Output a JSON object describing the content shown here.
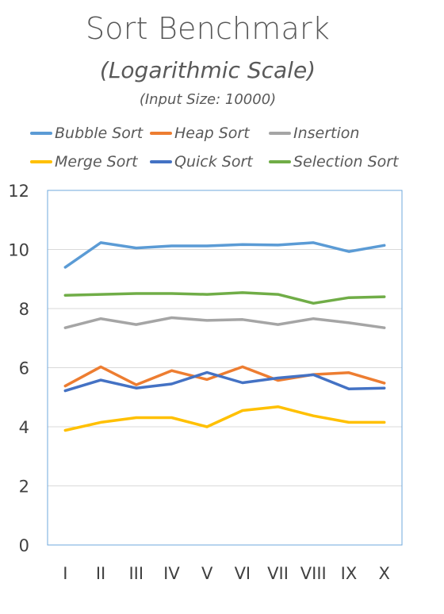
{
  "chart_data": {
    "type": "line",
    "title": "Sort Benchmark",
    "subtitle": "(Logarithmic Scale)",
    "subsubtitle": "(Input Size: 10000)",
    "xlabel": "",
    "ylabel": "",
    "categories": [
      "I",
      "II",
      "III",
      "IV",
      "V",
      "VI",
      "VII",
      "VIII",
      "IX",
      "X"
    ],
    "ylim": [
      0,
      12
    ],
    "yticks": [
      0,
      2,
      4,
      6,
      8,
      10,
      12
    ],
    "legend_position": "top",
    "grid": "horizontal",
    "series": [
      {
        "name": "Bubble Sort",
        "color": "#5B9BD5",
        "values": [
          9.4,
          10.23,
          10.05,
          10.12,
          10.12,
          10.17,
          10.15,
          10.23,
          9.93,
          10.14
        ]
      },
      {
        "name": "Heap Sort",
        "color": "#ED7D31",
        "values": [
          5.38,
          6.03,
          5.42,
          5.9,
          5.6,
          6.03,
          5.57,
          5.77,
          5.83,
          5.48
        ]
      },
      {
        "name": "Insertion",
        "color": "#A5A5A5",
        "values": [
          7.35,
          7.66,
          7.46,
          7.69,
          7.6,
          7.63,
          7.46,
          7.66,
          7.52,
          7.35
        ]
      },
      {
        "name": "Merge Sort",
        "color": "#FFC000",
        "values": [
          3.88,
          4.15,
          4.31,
          4.31,
          4.0,
          4.55,
          4.68,
          4.37,
          4.15,
          4.15
        ]
      },
      {
        "name": "Quick Sort",
        "color": "#4472C4",
        "values": [
          5.22,
          5.58,
          5.31,
          5.45,
          5.84,
          5.49,
          5.65,
          5.76,
          5.28,
          5.31
        ]
      },
      {
        "name": "Selection Sort",
        "color": "#70AD47",
        "values": [
          8.45,
          8.48,
          8.51,
          8.51,
          8.48,
          8.54,
          8.48,
          8.18,
          8.37,
          8.4
        ]
      }
    ]
  }
}
